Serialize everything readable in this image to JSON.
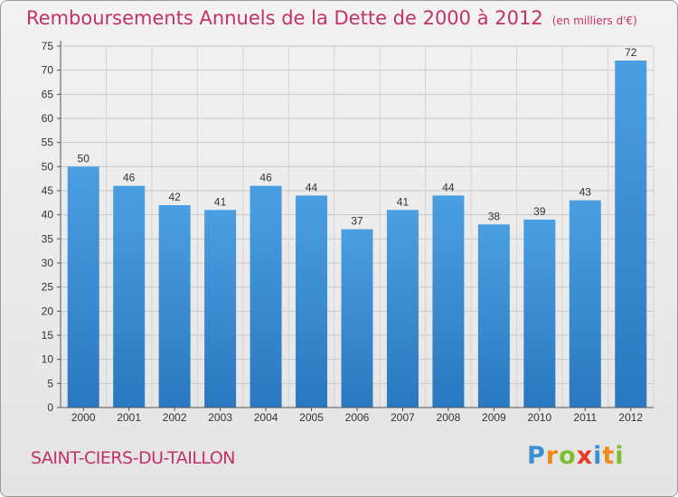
{
  "title": "Remboursements Annuels de la Dette de 2000 à 2012",
  "subtitle": "(en milliers d'€)",
  "commune": "SAINT-CIERS-DU-TAILLON",
  "logo": {
    "letters": [
      "P",
      "r",
      "o",
      "x",
      "i",
      "t",
      "i"
    ],
    "colors": [
      "#3d8fd1",
      "#f08a1c",
      "#7cbf2d",
      "#e63a2a",
      "#3d8fd1",
      "#f08a1c",
      "#7cbf2d"
    ]
  },
  "chart_data": {
    "type": "bar",
    "categories": [
      "2000",
      "2001",
      "2002",
      "2003",
      "2004",
      "2005",
      "2006",
      "2007",
      "2008",
      "2009",
      "2010",
      "2011",
      "2012"
    ],
    "values": [
      50,
      46,
      42,
      41,
      46,
      44,
      37,
      41,
      44,
      38,
      39,
      43,
      72
    ],
    "ylim": [
      0,
      75
    ],
    "ytick_step": 5,
    "grid": true,
    "bar_color": "#4b9fe0",
    "bar_color_dark": "#2a78c0"
  }
}
